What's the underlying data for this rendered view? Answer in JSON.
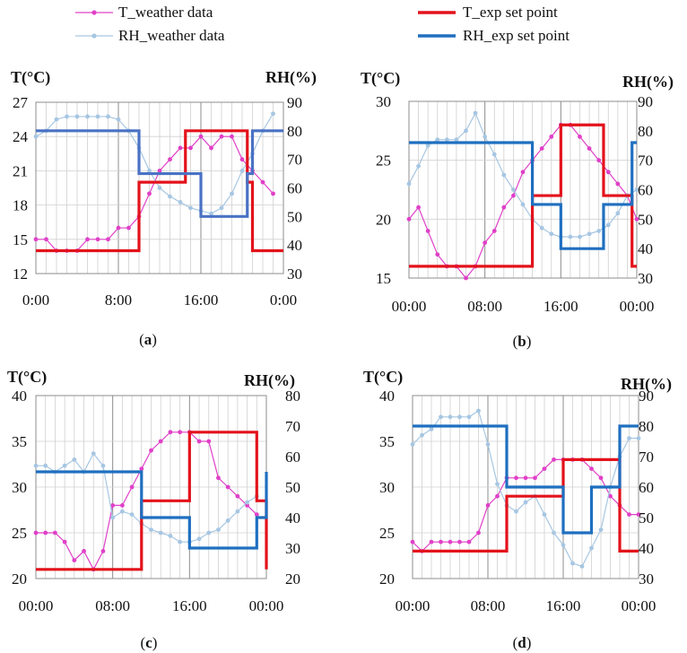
{
  "legend": {
    "t_weather": "T_weather data",
    "rh_weather": "RH_weather data",
    "t_set": "T_exp set point",
    "rh_set": "RH_exp set point"
  },
  "colors": {
    "t_weather": "#e040c8",
    "rh_weather": "#a6c6e2",
    "t_set": "#e3121b",
    "rh_set_a": "#4a72c4",
    "rh_set": "#1f6fc0",
    "grid": "#d0d0d0",
    "grid_major": "#8c8c8c"
  },
  "chart_data": [
    {
      "panel": "a",
      "caption": "a",
      "type": "line",
      "ylabel_left": "T(°C)",
      "ylabel_right": "RH(%)",
      "xticks": [
        "0:00",
        "8:00",
        "16:00",
        "0:00"
      ],
      "ylim_left": [
        12,
        27
      ],
      "yticks_left": [
        12,
        15,
        18,
        21,
        24,
        27
      ],
      "ylim_right": [
        30,
        90
      ],
      "yticks_right": [
        30,
        40,
        50,
        60,
        70,
        80,
        90
      ],
      "grid": true,
      "series": [
        {
          "name": "T_weather data",
          "axis": "left",
          "marker": true,
          "x": [
            0,
            1,
            2,
            3,
            4,
            5,
            6,
            7,
            8,
            9,
            10,
            11,
            12,
            13,
            14,
            15,
            16,
            17,
            18,
            19,
            20,
            21,
            22,
            23
          ],
          "y": [
            15,
            15,
            14,
            14,
            14,
            15,
            15,
            15,
            16,
            16,
            17,
            19,
            21,
            22,
            23,
            23,
            24,
            23,
            24,
            24,
            22,
            21,
            20,
            19
          ]
        },
        {
          "name": "RH_weather data",
          "axis": "right",
          "marker": true,
          "x": [
            0,
            1,
            2,
            3,
            4,
            5,
            6,
            7,
            8,
            9,
            10,
            11,
            12,
            13,
            14,
            15,
            16,
            17,
            18,
            19,
            20,
            21,
            22,
            23
          ],
          "y": [
            78,
            80,
            84,
            85,
            85,
            85,
            85,
            85,
            84,
            80,
            74,
            66,
            60,
            57,
            55,
            53,
            52,
            51,
            53,
            58,
            66,
            72,
            80,
            86
          ]
        },
        {
          "name": "T_exp set point",
          "axis": "left",
          "step": true,
          "x": [
            0,
            8.5,
            10,
            14.5,
            16,
            19,
            20.5,
            21,
            24
          ],
          "y": [
            14,
            14,
            20,
            24.5,
            24.5,
            24.5,
            20,
            14,
            14
          ]
        },
        {
          "name": "RH_exp set point",
          "axis": "right",
          "step": true,
          "x": [
            0,
            8.5,
            10,
            16,
            19,
            20.5,
            21,
            24
          ],
          "y": [
            80,
            80,
            65,
            50,
            50,
            65,
            80,
            80
          ]
        }
      ]
    },
    {
      "panel": "b",
      "caption": "b",
      "type": "line",
      "ylabel_left": "T(°C)",
      "ylabel_right": "RH(%)",
      "xticks": [
        "00:00",
        "08:00",
        "16:00",
        "00:00"
      ],
      "ylim_left": [
        15,
        30
      ],
      "yticks_left": [
        15,
        20,
        25,
        30
      ],
      "ylim_right": [
        30,
        90
      ],
      "yticks_right": [
        30,
        40,
        50,
        60,
        70,
        80,
        90
      ],
      "grid": true,
      "series": [
        {
          "name": "T_weather data",
          "axis": "left",
          "marker": true,
          "x": [
            0,
            1,
            2,
            3,
            4,
            5,
            6,
            7,
            8,
            9,
            10,
            11,
            12,
            13,
            14,
            15,
            16,
            17,
            18,
            19,
            20,
            21,
            22,
            23,
            24
          ],
          "y": [
            20,
            21,
            19,
            17,
            16,
            16,
            15,
            16,
            18,
            19,
            21,
            22,
            24,
            25,
            26,
            27,
            28,
            28,
            27,
            26,
            25,
            24,
            23,
            22,
            20
          ]
        },
        {
          "name": "RH_weather data",
          "axis": "right",
          "marker": true,
          "x": [
            0,
            1,
            2,
            3,
            4,
            5,
            6,
            7,
            8,
            9,
            10,
            11,
            12,
            13,
            14,
            15,
            16,
            17,
            18,
            19,
            20,
            21,
            22,
            23,
            24
          ],
          "y": [
            62,
            68,
            75,
            77,
            77,
            77,
            80,
            86,
            78,
            72,
            65,
            60,
            55,
            50,
            47,
            45,
            44,
            44,
            44,
            45,
            46,
            48,
            52,
            58,
            60
          ]
        },
        {
          "name": "T_exp set point",
          "axis": "left",
          "step": true,
          "x": [
            0,
            11,
            13,
            16,
            18.5,
            20.5,
            23.5,
            24
          ],
          "y": [
            16,
            16,
            22,
            28,
            28,
            22,
            16,
            16
          ]
        },
        {
          "name": "RH_exp set point",
          "axis": "right",
          "step": true,
          "x": [
            0,
            11,
            13,
            16,
            18.5,
            20.5,
            23.5,
            24
          ],
          "y": [
            76,
            76,
            55,
            40,
            40,
            55,
            76,
            76
          ]
        }
      ]
    },
    {
      "panel": "c",
      "caption": "c",
      "type": "line",
      "ylabel_left": "T(°C)",
      "ylabel_right": "RH(%)",
      "xticks": [
        "00:00",
        "08:00",
        "16:00",
        "00:00"
      ],
      "ylim_left": [
        20,
        40
      ],
      "yticks_left": [
        20,
        25,
        30,
        35,
        40
      ],
      "ylim_right": [
        20,
        80
      ],
      "yticks_right": [
        20,
        30,
        40,
        50,
        60,
        70,
        80
      ],
      "grid": true,
      "series": [
        {
          "name": "T_weather data",
          "axis": "left",
          "marker": true,
          "x": [
            0,
            1,
            2,
            3,
            4,
            5,
            6,
            7,
            8,
            9,
            10,
            11,
            12,
            13,
            14,
            15,
            16,
            17,
            18,
            19,
            20,
            21,
            22,
            23
          ],
          "y": [
            25,
            25,
            25,
            24,
            22,
            23,
            21,
            23,
            28,
            28,
            30,
            32,
            34,
            35,
            36,
            36,
            36,
            35,
            35,
            31,
            30,
            29,
            28,
            27
          ]
        },
        {
          "name": "RH_weather data",
          "axis": "right",
          "marker": true,
          "x": [
            0,
            1,
            2,
            3,
            4,
            5,
            6,
            7,
            8,
            9,
            10,
            11,
            12,
            13,
            14,
            15,
            16,
            17,
            18,
            19,
            20,
            21,
            22,
            23
          ],
          "y": [
            57,
            57,
            55,
            57,
            59,
            55,
            61,
            57,
            40,
            42,
            41,
            38,
            36,
            35,
            34,
            32,
            32,
            33,
            35,
            36,
            39,
            42,
            45,
            47
          ]
        },
        {
          "name": "T_exp set point",
          "axis": "left",
          "step": true,
          "x": [
            0,
            7.5,
            11,
            16,
            19,
            23,
            24
          ],
          "y": [
            21,
            21,
            28.5,
            36,
            36,
            28.5,
            21
          ]
        },
        {
          "name": "RH_exp set point",
          "axis": "right",
          "step": true,
          "x": [
            0,
            7.5,
            11,
            16,
            19,
            23,
            24
          ],
          "y": [
            55,
            55,
            40,
            30,
            30,
            40,
            55
          ]
        }
      ]
    },
    {
      "panel": "d",
      "caption": "d",
      "type": "line",
      "ylabel_left": "T(°C)",
      "ylabel_right": "RH(%)",
      "xticks": [
        "00:00",
        "08:00",
        "16:00",
        "00:00"
      ],
      "ylim_left": [
        20,
        40
      ],
      "yticks_left": [
        20,
        25,
        30,
        35,
        40
      ],
      "ylim_right": [
        30,
        90
      ],
      "yticks_right": [
        30,
        40,
        50,
        60,
        70,
        80,
        90
      ],
      "grid": true,
      "series": [
        {
          "name": "T_weather data",
          "axis": "left",
          "marker": true,
          "x": [
            0,
            1,
            2,
            3,
            4,
            5,
            6,
            7,
            8,
            9,
            10,
            11,
            12,
            13,
            14,
            15,
            16,
            17,
            18,
            19,
            20,
            21,
            22,
            23,
            24
          ],
          "y": [
            24,
            23,
            24,
            24,
            24,
            24,
            24,
            25,
            28,
            29,
            31,
            31,
            31,
            31,
            32,
            33,
            33,
            33,
            33,
            32,
            31,
            29,
            28,
            27,
            27
          ]
        },
        {
          "name": "RH_weather data",
          "axis": "right",
          "marker": true,
          "x": [
            0,
            1,
            2,
            3,
            4,
            5,
            6,
            7,
            8,
            9,
            10,
            11,
            12,
            13,
            14,
            15,
            16,
            17,
            18,
            19,
            20,
            21,
            22,
            23,
            24
          ],
          "y": [
            74,
            77,
            79,
            83,
            83,
            83,
            83,
            85,
            74,
            61,
            54,
            52,
            55,
            57,
            51,
            45,
            41,
            35,
            34,
            40,
            46,
            60,
            70,
            76,
            76
          ]
        },
        {
          "name": "T_exp set point",
          "axis": "left",
          "step": true,
          "x": [
            0,
            8,
            10,
            16,
            19,
            22,
            24
          ],
          "y": [
            23,
            23,
            29,
            33,
            33,
            23,
            23
          ]
        },
        {
          "name": "RH_exp set point",
          "axis": "right",
          "step": true,
          "x": [
            0,
            8,
            10,
            16,
            19,
            22,
            24
          ],
          "y": [
            80,
            80,
            60,
            45,
            60,
            80,
            80
          ]
        }
      ]
    }
  ]
}
